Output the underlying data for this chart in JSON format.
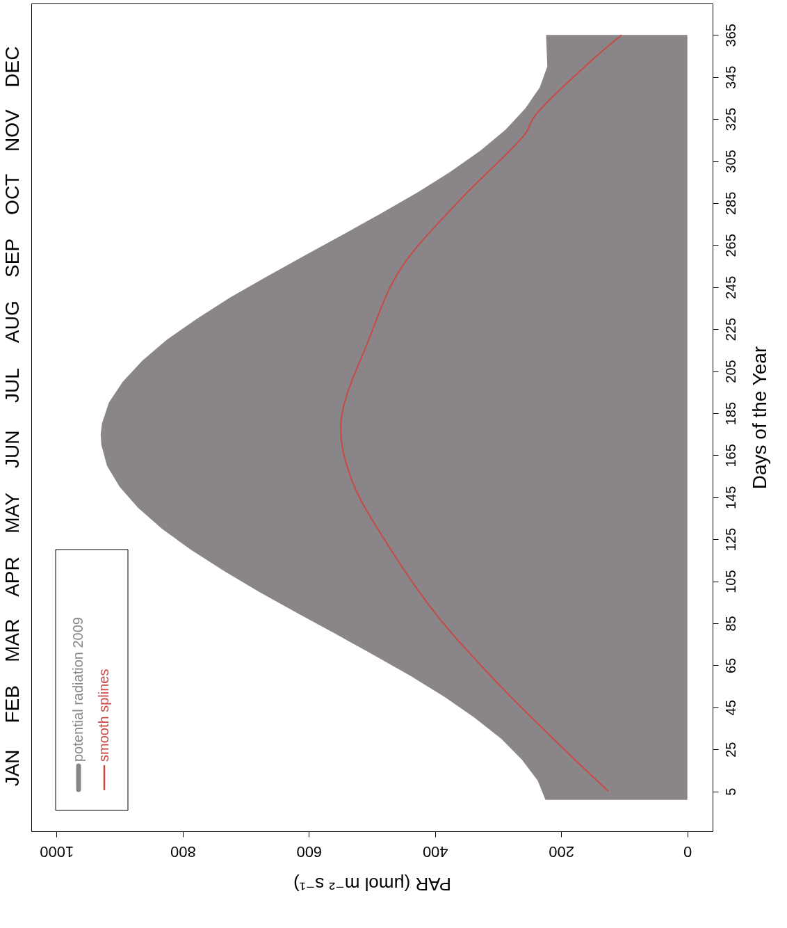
{
  "chart_data": {
    "type": "area",
    "orientation": "horizontal",
    "ylabel": "Days of the Year",
    "xlabel": "PAR (μmol m⁻² s⁻¹)",
    "ylim": [
      -14,
      380
    ],
    "yticks": [
      5,
      25,
      45,
      65,
      85,
      105,
      125,
      145,
      165,
      185,
      205,
      225,
      245,
      265,
      285,
      305,
      325,
      345,
      365
    ],
    "annotations": [
      "JAN",
      "FEB",
      "MAR",
      "APR",
      "MAY",
      "JUN",
      "JUL",
      "AUG",
      "SEP",
      "OCT",
      "NOV",
      "DEC"
    ],
    "xlim": [
      1040,
      -40
    ],
    "xticks": [
      1000,
      800,
      600,
      400,
      200,
      0
    ],
    "legend": "bottom left",
    "series": [
      {
        "name": "potential radiation 2009",
        "type": "area",
        "color": "#8a8589",
        "x": [
          1,
          10,
          20,
          30,
          40,
          50,
          60,
          70,
          80,
          90,
          100,
          110,
          120,
          130,
          140,
          150,
          160,
          170,
          175,
          180,
          190,
          200,
          210,
          220,
          230,
          240,
          250,
          260,
          270,
          280,
          290,
          300,
          310,
          320,
          330,
          340,
          350,
          365
        ],
        "values": [
          225,
          237,
          262,
          295,
          337,
          385,
          439,
          498,
          558,
          619,
          679,
          735,
          787,
          833,
          871,
          900,
          920,
          929,
          930,
          928,
          917,
          895,
          864,
          825,
          777,
          725,
          667,
          607,
          546,
          486,
          428,
          375,
          328,
          288,
          257,
          234,
          222,
          224
        ]
      },
      {
        "name": "smooth splines",
        "type": "line",
        "color": "#c94a44",
        "x": [
          5,
          22,
          55,
          88,
          121,
          154,
          181,
          220,
          253,
          286,
          318,
          326,
          352,
          365
        ],
        "values": [
          125,
          185,
          296,
          395,
          472,
          533,
          549,
          505,
          456,
          362,
          257,
          243,
          155,
          104
        ]
      }
    ]
  }
}
